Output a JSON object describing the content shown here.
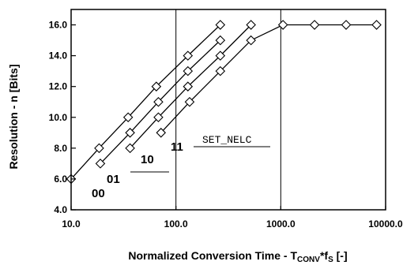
{
  "chart_data": {
    "type": "scatter",
    "title": "",
    "xlabel_main": "Normalized Conversion Time - T",
    "xlabel_sub": "CONV",
    "xlabel_mid": "*f",
    "xlabel_sub2": "S",
    "xlabel_end": " [-]",
    "ylabel": "Resolution - n [Bits]",
    "xscale": "log",
    "xlim": [
      10,
      10000
    ],
    "ylim": [
      4,
      17
    ],
    "grid": "vertical at decades",
    "x_ticks": [
      10,
      100,
      1000,
      10000
    ],
    "x_tick_labels": [
      "10.0",
      "100.0",
      "1000.0",
      "10000.0"
    ],
    "y_ticks": [
      4,
      6,
      8,
      10,
      12,
      14,
      16
    ],
    "y_tick_labels": [
      "4.0",
      "6.0",
      "8.0",
      "10.0",
      "12.0",
      "14.0",
      "16.0"
    ],
    "marker": "diamond",
    "series": [
      {
        "name": "00",
        "x": [
          10,
          18.5,
          35,
          65,
          130,
          265
        ],
        "y": [
          6,
          8,
          10,
          12,
          14,
          16
        ]
      },
      {
        "name": "01",
        "x": [
          19,
          36.5,
          68,
          130,
          265
        ],
        "y": [
          7,
          9,
          11,
          13,
          15
        ]
      },
      {
        "name": "10",
        "x": [
          36.5,
          68,
          130,
          265,
          520
        ],
        "y": [
          8,
          10,
          12,
          14,
          16
        ]
      },
      {
        "name": "11",
        "x": [
          72,
          135,
          265,
          520,
          1050,
          2100,
          4200,
          8200
        ],
        "y": [
          9,
          11,
          13,
          15,
          16,
          16,
          16,
          16
        ]
      }
    ],
    "annotation": "SET_NELC"
  }
}
